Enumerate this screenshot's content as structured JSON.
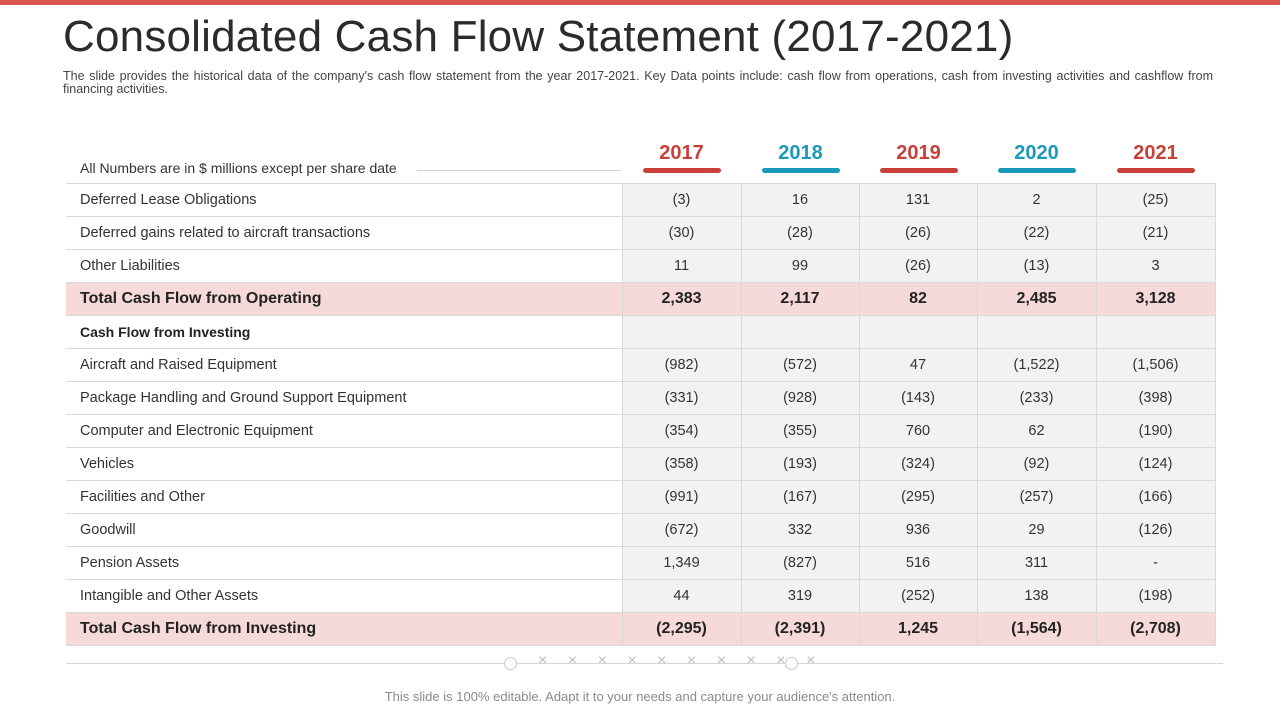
{
  "title": "Consolidated Cash Flow Statement (2017-2021)",
  "subtitle": "The slide provides the historical data of the company's cash flow statement from the year 2017-2021. Key Data points include: cash flow from operations, cash from investing activities and cashflow from financing activities.",
  "unit_note": "All Numbers are in $ millions except per share date",
  "colors": {
    "accent_red": "#c9403b",
    "accent_teal": "#1a9ab8",
    "total_row_bg": "#f6dada",
    "top_bar": "#d9534f"
  },
  "years": [
    "2017",
    "2018",
    "2019",
    "2020",
    "2021"
  ],
  "rows": [
    {
      "label": "Deferred Lease Obligations",
      "values": [
        "(3)",
        "16",
        "131",
        "2",
        "(25)"
      ]
    },
    {
      "label": "Deferred gains related to aircraft transactions",
      "values": [
        "(30)",
        "(28)",
        "(26)",
        "(22)",
        "(21)"
      ]
    },
    {
      "label": "Other Liabilities",
      "values": [
        "11",
        "99",
        "(26)",
        "(13)",
        "3"
      ]
    },
    {
      "label": "Total  Cash Flow from Operating",
      "values": [
        "2,383",
        "2,117",
        "82",
        "2,485",
        "3,128"
      ]
    },
    {
      "label": "Cash Flow from Investing",
      "values": [
        "",
        "",
        "",
        "",
        ""
      ]
    },
    {
      "label": "Aircraft and Raised Equipment",
      "values": [
        "(982)",
        "(572)",
        "47",
        "(1,522)",
        "(1,506)"
      ]
    },
    {
      "label": "Package Handling and Ground Support Equipment",
      "values": [
        "(331)",
        "(928)",
        "(143)",
        "(233)",
        "(398)"
      ]
    },
    {
      "label": "Computer and Electronic Equipment",
      "values": [
        "(354)",
        "(355)",
        "760",
        "62",
        "(190)"
      ]
    },
    {
      "label": "Vehicles",
      "values": [
        "(358)",
        "(193)",
        "(324)",
        "(92)",
        "(124)"
      ]
    },
    {
      "label": "Facilities and Other",
      "values": [
        "(991)",
        "(167)",
        "(295)",
        "(257)",
        "(166)"
      ]
    },
    {
      "label": "Goodwill",
      "values": [
        "(672)",
        "332",
        "936",
        "29",
        "(126)"
      ]
    },
    {
      "label": "Pension Assets",
      "values": [
        "1,349",
        "(827)",
        "516",
        "311",
        "-"
      ]
    },
    {
      "label": "Intangible and Other Assets",
      "values": [
        "44",
        "319",
        "(252)",
        "138",
        "(198)"
      ]
    },
    {
      "label": "Total Cash Flow from Investing",
      "values": [
        "(2,295)",
        "(2,391)",
        "1,245",
        "(1,564)",
        "(2,708)"
      ]
    }
  ],
  "footer": {
    "decoration": "× × × × × × × × × ×",
    "text": "This slide is 100% editable. Adapt it to your needs and capture your audience's attention."
  }
}
